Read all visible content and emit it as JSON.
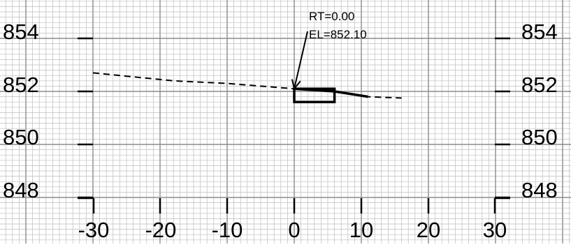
{
  "section": {
    "elevation_labels_left": [
      "854",
      "852",
      "850",
      "848"
    ],
    "elevation_labels_right": [
      "854",
      "852",
      "850",
      "848"
    ],
    "offset_labels": [
      "-30",
      "-20",
      "-10",
      "0",
      "10",
      "20",
      "30"
    ],
    "elevations": [
      854,
      852,
      850,
      848
    ],
    "offsets": [
      -30,
      -20,
      -10,
      0,
      10,
      20,
      30
    ],
    "annotation": {
      "rt_text": "RT=0.00",
      "el_text": "EL=852.10",
      "offset": 0.0,
      "elevation": 852.1
    },
    "existing_ground": [
      {
        "x": -30,
        "y": 852.7
      },
      {
        "x": -18,
        "y": 852.4
      },
      {
        "x": -10,
        "y": 852.3
      },
      {
        "x": 0,
        "y": 852.1
      },
      {
        "x": 6,
        "y": 852.0
      },
      {
        "x": 11,
        "y": 851.8
      },
      {
        "x": 16,
        "y": 851.75
      }
    ],
    "proposed_surface": [
      {
        "x": 0,
        "y": 852.1
      },
      {
        "x": 6,
        "y": 852.0
      },
      {
        "x": 11,
        "y": 851.8
      }
    ],
    "culvert_box": {
      "x_min": 0,
      "x_max": 6,
      "y_min": 851.6,
      "y_max": 852.1
    },
    "colors": {
      "grid_minor": "#bdbdbd",
      "grid_major": "#8c8c8c",
      "ink": "#000000",
      "background": "#ffffff"
    }
  }
}
